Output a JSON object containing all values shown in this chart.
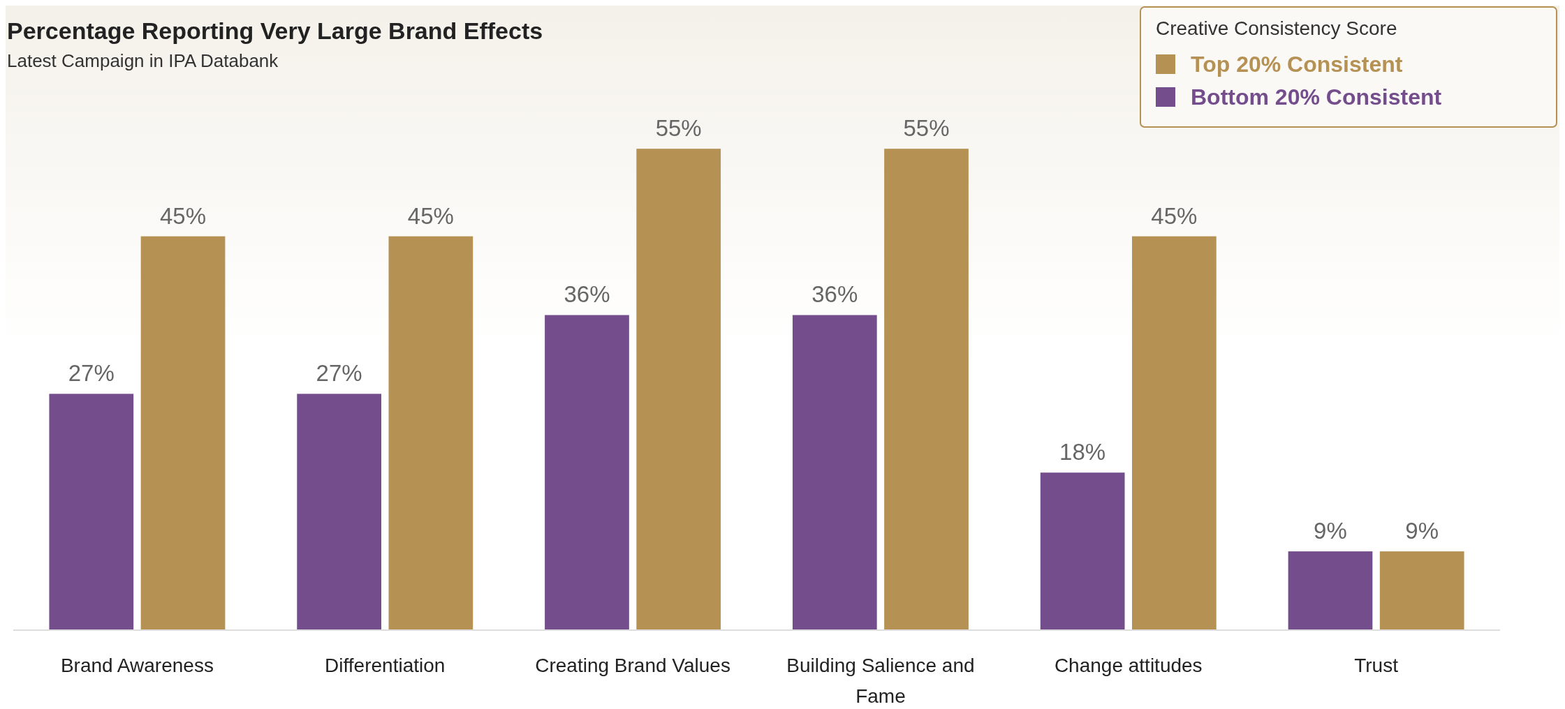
{
  "chart_data": {
    "type": "bar",
    "title": "Percentage Reporting Very Large Brand Effects",
    "subtitle": "Latest Campaign in IPA Databank",
    "legend_title": "Creative Consistency Score",
    "legend": "top right",
    "categories": [
      "Brand Awareness",
      "Differentiation",
      "Creating Brand Values",
      "Building Salience and Fame",
      "Change attitudes",
      "Trust"
    ],
    "series": [
      {
        "name": "Bottom 20% Consistent",
        "color": "#744d8c",
        "values": [
          27,
          27,
          36,
          36,
          18,
          9
        ],
        "value_labels": [
          "27%",
          "27%",
          "36%",
          "36%",
          "18%",
          "9%"
        ]
      },
      {
        "name": "Top 20% Consistent",
        "color": "#b59154",
        "values": [
          45,
          45,
          55,
          55,
          45,
          9
        ],
        "value_labels": [
          "45%",
          "45%",
          "55%",
          "55%",
          "45%",
          "9%"
        ]
      }
    ]
  }
}
